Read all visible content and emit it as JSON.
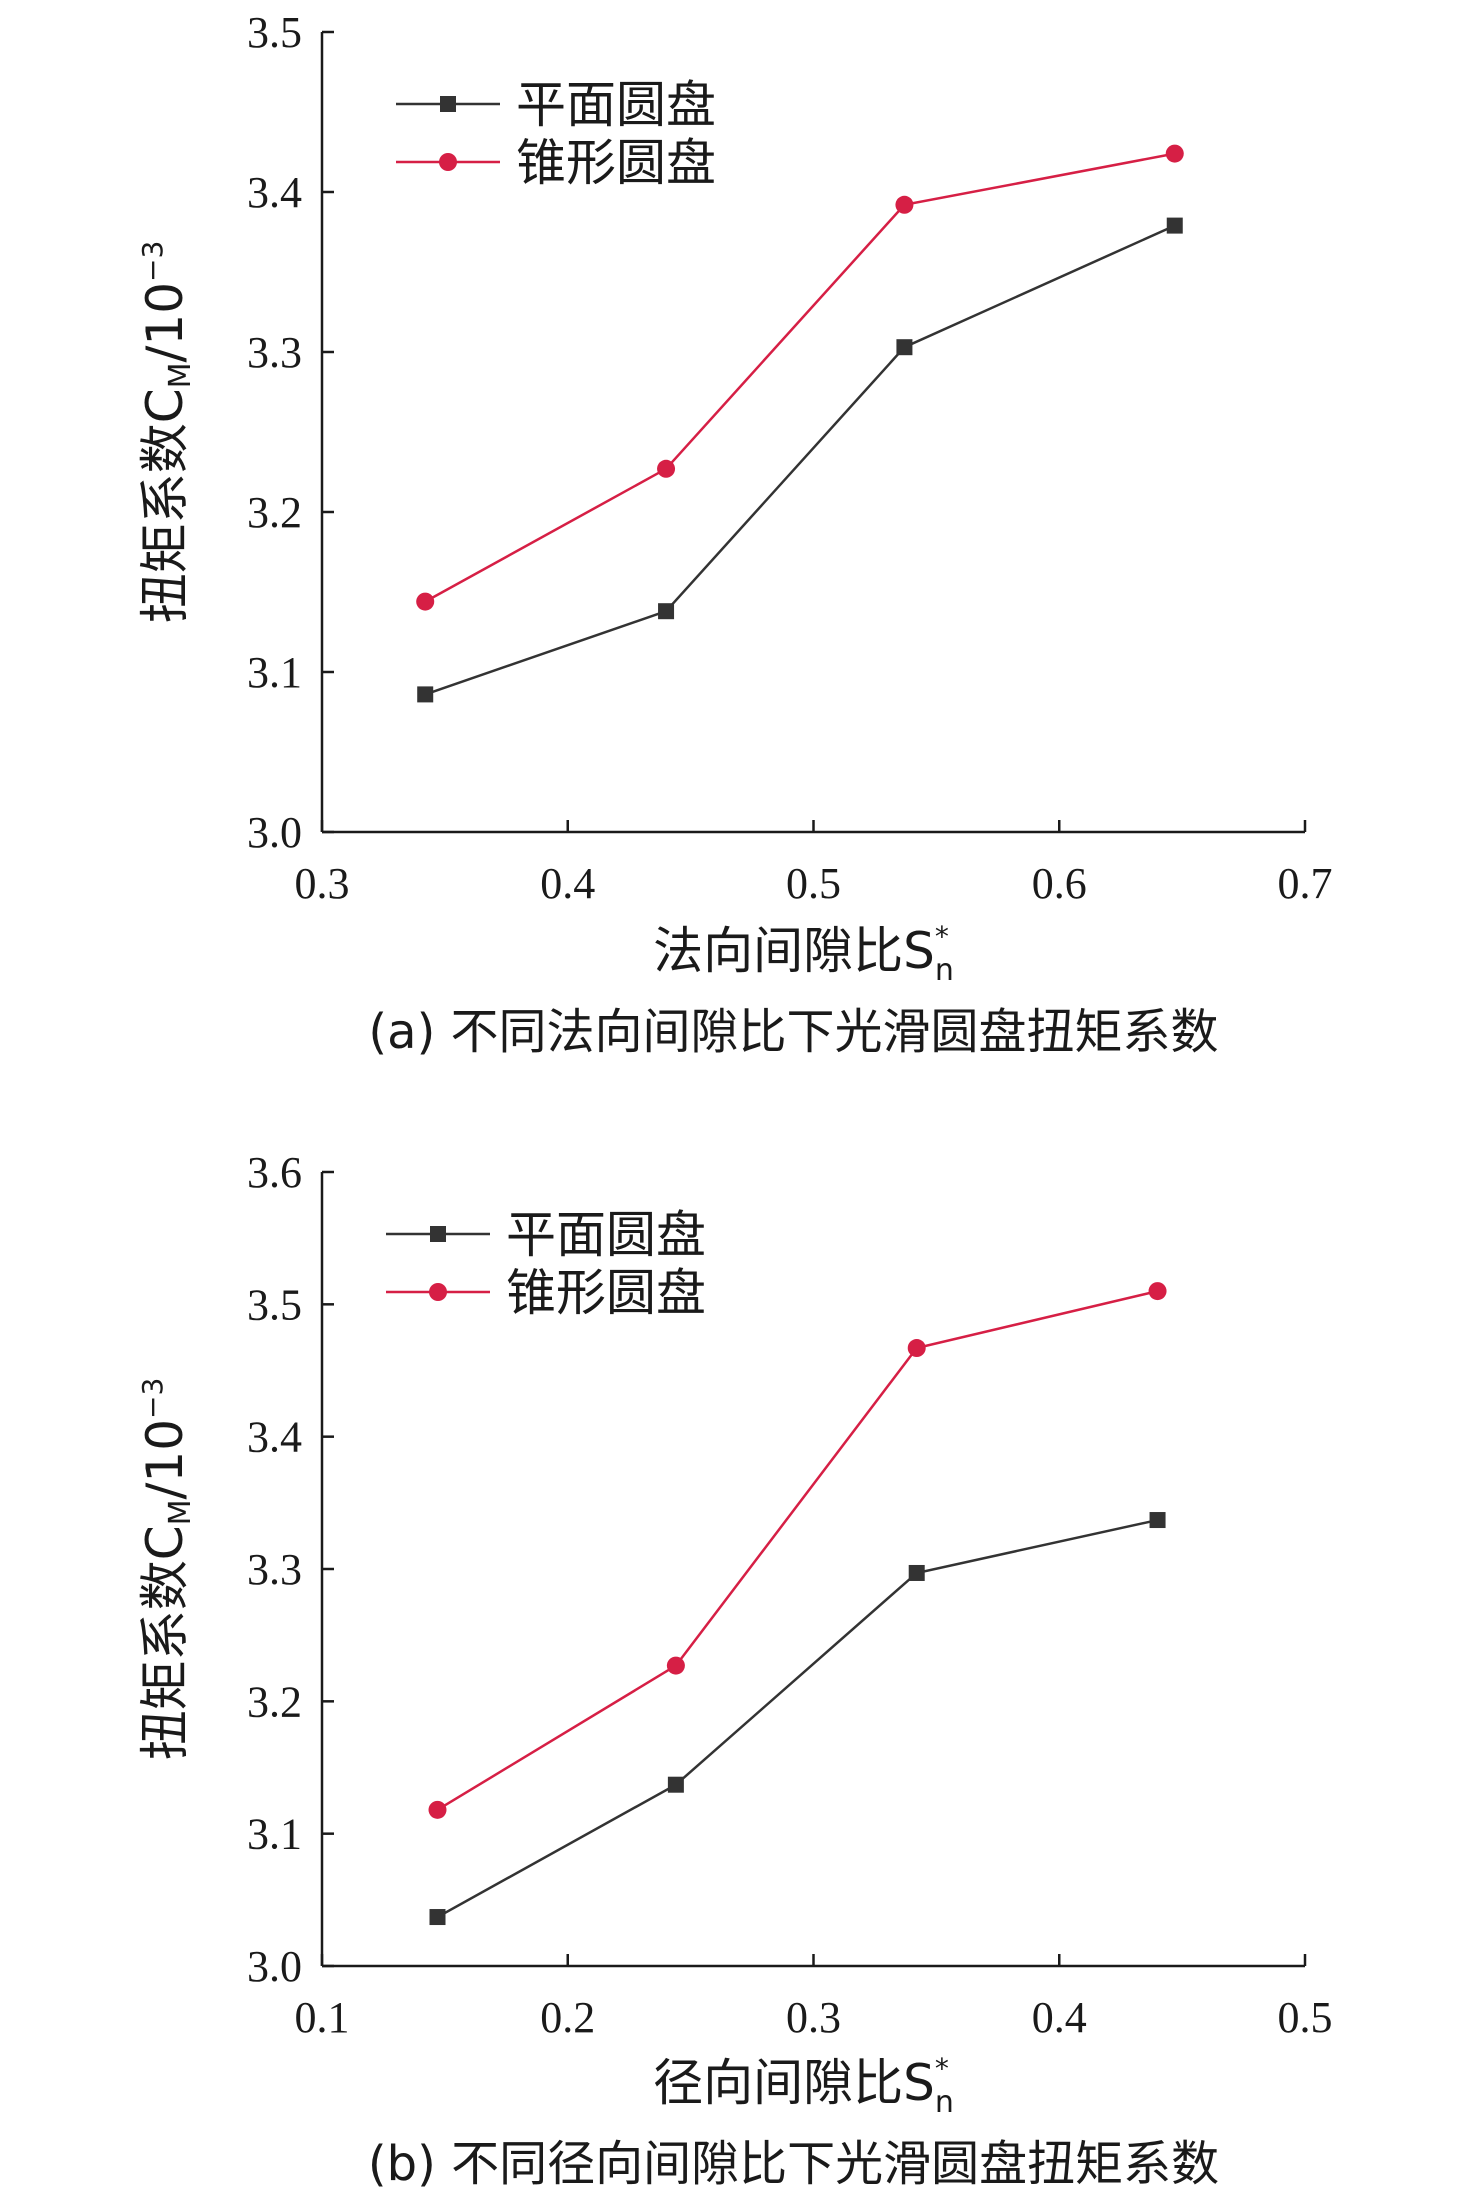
{
  "chart_data": [
    {
      "type": "line",
      "x": [
        0.342,
        0.44,
        0.537,
        0.647
      ],
      "xlim": [
        0.3,
        0.7
      ],
      "xticks": [
        "0.3",
        "0.4",
        "0.5",
        "0.6",
        "0.7"
      ],
      "ylim": [
        3.0,
        3.5
      ],
      "yticks": [
        "3.0",
        "3.1",
        "3.2",
        "3.3",
        "3.4",
        "3.5"
      ],
      "ylabel": "扭矩系数C",
      "ylabel_sub": "M",
      "ylabel_unit": "/10",
      "ylabel_sup": "−3",
      "xlabel": "法向间隙比S",
      "xlabel_sub": "n",
      "xlabel_sup": "*",
      "series": [
        {
          "name": "平面圆盘",
          "marker": "square",
          "color": "#333333",
          "values": [
            3.086,
            3.138,
            3.303,
            3.379
          ]
        },
        {
          "name": "锥形圆盘",
          "marker": "circle",
          "color": "#d61f45",
          "values": [
            3.144,
            3.227,
            3.392,
            3.424
          ]
        }
      ],
      "legend": "top-left",
      "grid": false,
      "caption": "(a) 不同法向间隙比下光滑圆盘扭矩系数"
    },
    {
      "type": "line",
      "x": [
        0.147,
        0.244,
        0.342,
        0.44
      ],
      "xlim": [
        0.1,
        0.5
      ],
      "xticks": [
        "0.1",
        "0.2",
        "0.3",
        "0.4",
        "0.5"
      ],
      "ylim": [
        3.0,
        3.6
      ],
      "yticks": [
        "3.0",
        "3.1",
        "3.2",
        "3.3",
        "3.4",
        "3.5",
        "3.6"
      ],
      "ylabel": "扭矩系数C",
      "ylabel_sub": "M",
      "ylabel_unit": "/10",
      "ylabel_sup": "−3",
      "xlabel": "径向间隙比S",
      "xlabel_sub": "n",
      "xlabel_sup": "*",
      "series": [
        {
          "name": "平面圆盘",
          "marker": "square",
          "color": "#333333",
          "values": [
            3.037,
            3.137,
            3.297,
            3.337
          ]
        },
        {
          "name": "锥形圆盘",
          "marker": "circle",
          "color": "#d61f45",
          "values": [
            3.118,
            3.227,
            3.467,
            3.51
          ]
        }
      ],
      "legend": "top-left",
      "grid": false,
      "caption": "(b) 不同径向间隙比下光滑圆盘扭矩系数"
    }
  ]
}
